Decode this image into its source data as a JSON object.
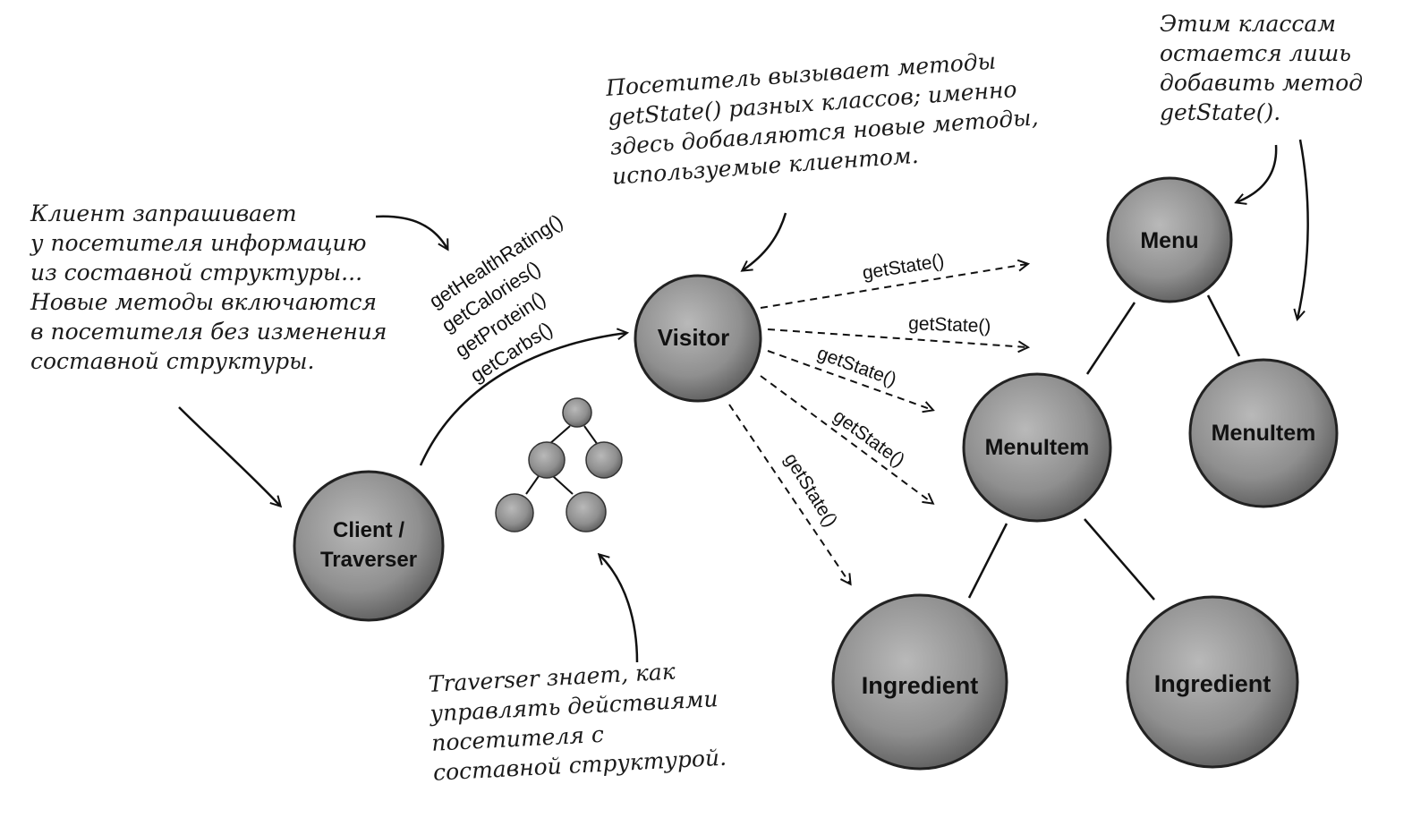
{
  "nodes": {
    "client": "Client /\nTraverser",
    "visitor": "Visitor",
    "menu": "Menu",
    "menuitem_left": "MenuItem",
    "menuitem_right": "MenuItem",
    "ingredient_left": "Ingredient",
    "ingredient_right": "Ingredient"
  },
  "visitor_methods": [
    "getHealthRating()",
    "getCalories()",
    "getProtein()",
    "getCarbs()"
  ],
  "arrow_label": "getState()",
  "notes": {
    "client": "Клиент запрашивает\nу посетителя информацию\nиз составной структуры...\nНовые методы включаются\nв посетителя без изменения\nсоставной структуры.",
    "visitor": "Посетитель вызывает методы\ngetState() разных классов; именно\nздесь добавляются новые методы,\nиспользуемые клиентом.",
    "classes": "Этим классам\nостается лишь\nдобавить метод\ngetState().",
    "traverser": "Traverser знает, как\nуправлять действиями\nпосетителя с\nсоставной структурой."
  },
  "colors": {
    "node_fill": "#8f8f8f",
    "ink": "#111111"
  }
}
